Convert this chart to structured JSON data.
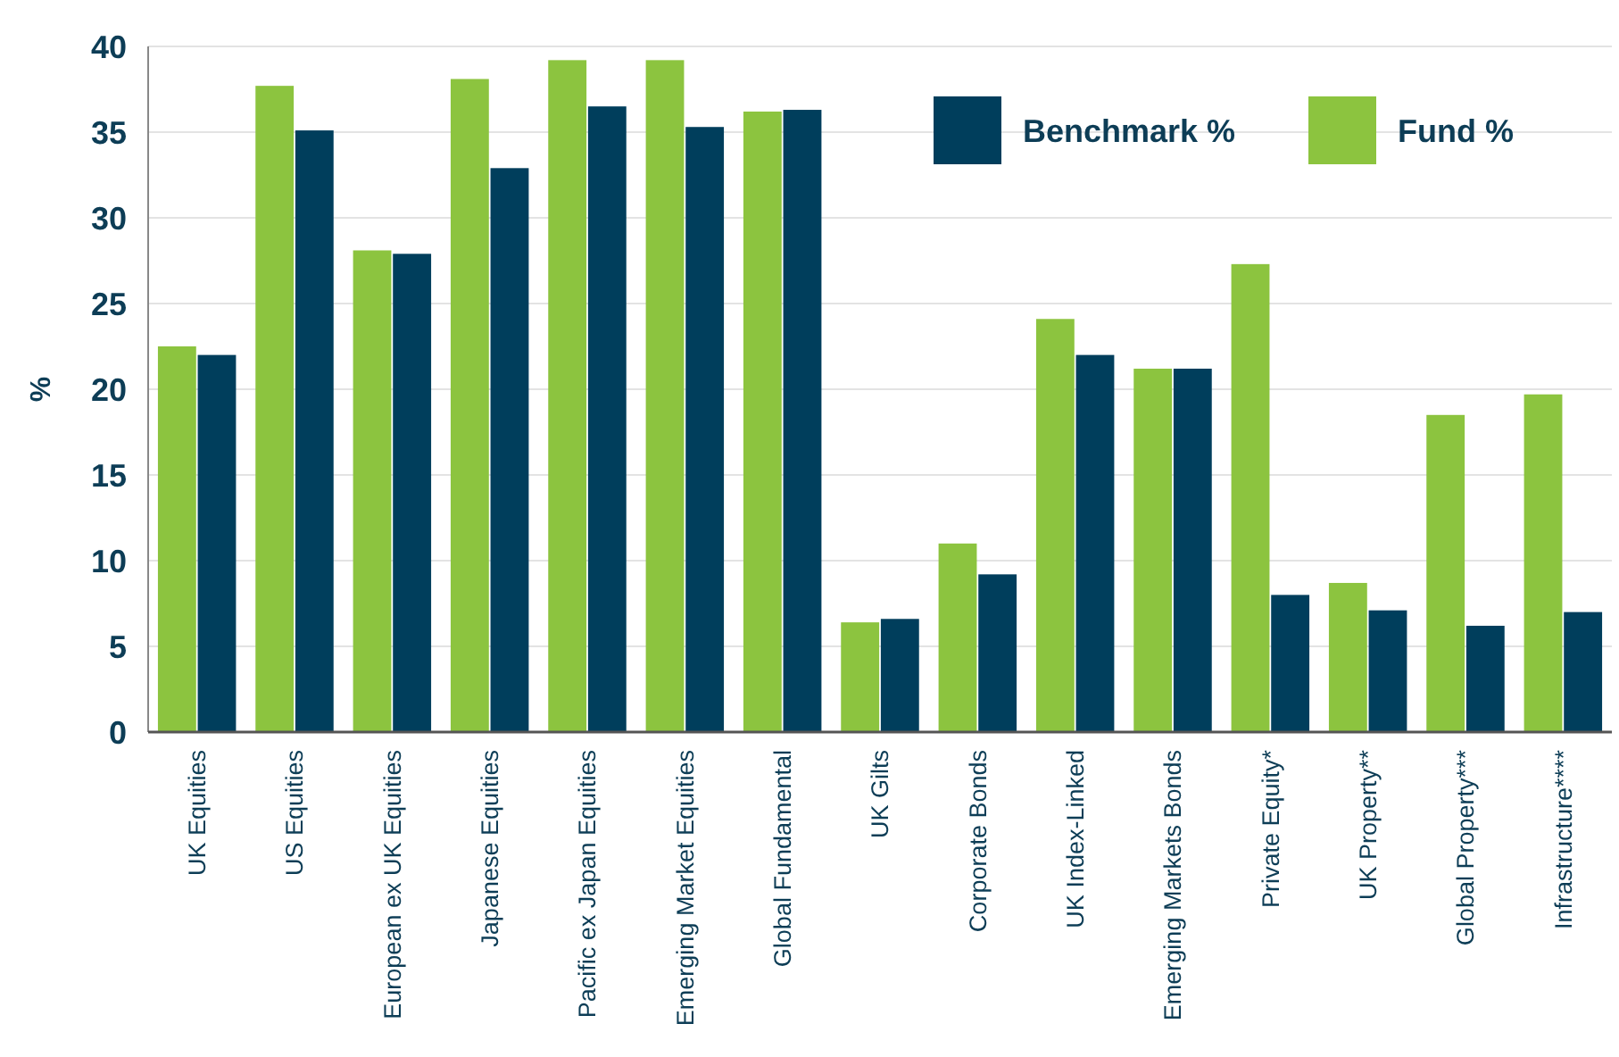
{
  "chart_data": {
    "type": "bar",
    "ylabel": "%",
    "categories": [
      "UK Equities",
      "US Equities",
      "European ex UK Equities",
      "Japanese Equities",
      "Pacific ex Japan Equities",
      "Emerging Market Equities",
      "Global Fundamental",
      "UK Gilts",
      "Corporate Bonds",
      "UK Index-Linked",
      "Emerging Markets Bonds",
      "Private Equity*",
      "UK Property**",
      "Global Property***",
      "Infrastructure****"
    ],
    "series": [
      {
        "name": "Fund %",
        "color": "#8cc43f",
        "values": [
          22.5,
          37.7,
          28.1,
          38.1,
          39.2,
          39.2,
          36.2,
          6.4,
          11.0,
          24.1,
          21.2,
          27.3,
          8.7,
          18.5,
          19.7
        ]
      },
      {
        "name": "Benchmark %",
        "color": "#003e5c",
        "values": [
          22.0,
          35.1,
          27.9,
          32.9,
          36.5,
          35.3,
          36.3,
          6.6,
          9.2,
          22.0,
          21.2,
          8.0,
          7.1,
          6.2,
          7.0
        ]
      }
    ],
    "ylim": [
      0,
      40
    ],
    "yticks": [
      0,
      5,
      10,
      15,
      20,
      25,
      30,
      35,
      40
    ],
    "grid": "y",
    "legend": "top right"
  }
}
